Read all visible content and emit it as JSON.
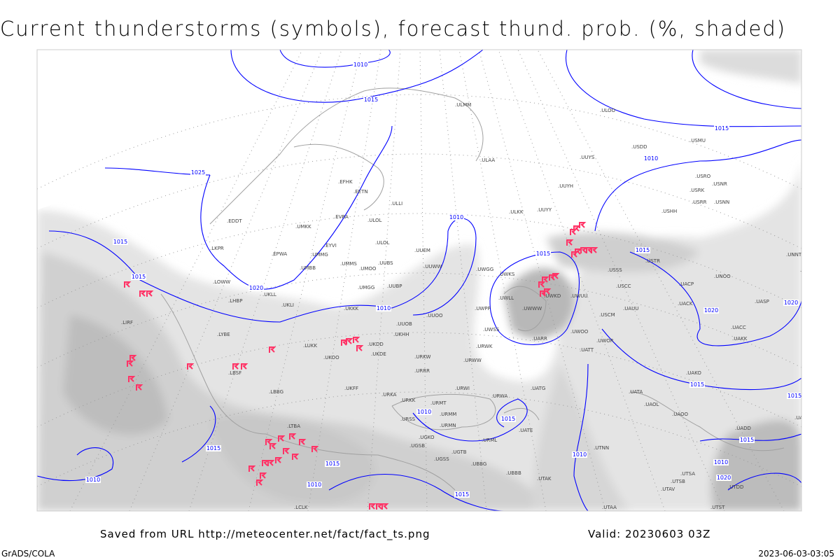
{
  "title": "Current thunderstorms (symbols), forecast thund. prob. (%, shaded)",
  "footer": {
    "source": "Saved from URL http://meteocenter.net/fact/fact_ts.png",
    "valid": "Valid: 20230603 03Z",
    "software": "GrADS/COLA",
    "timestamp": "2023-06-03-03:05"
  },
  "colors": {
    "isobar": "#0000ff",
    "storm_symbol": "#ff3366",
    "coastline": "#a0a0a0",
    "shading_light": "#e4e4e4",
    "shading_mid": "#cfcfcf",
    "shading_dark": "#b4b4b4"
  },
  "isobar_labels": [
    "1010",
    "1015",
    "1025",
    "1015",
    "1020",
    "1015",
    "1010",
    "1010",
    "1015",
    "1010",
    "1015",
    "1020",
    "1020",
    "1015",
    "1015",
    "1010",
    "1015",
    "1010",
    "1010",
    "1015",
    "1015",
    "1010",
    "1015",
    "1020",
    "1015",
    "1015",
    "1010"
  ],
  "stations": [
    "ULMM",
    "ULOO",
    "USDD",
    "USMU",
    "UUYS",
    "ULAA",
    "UUYH",
    "USRO",
    "USRK",
    "USNR",
    "USRR",
    "USNN",
    "USHH",
    "ULKK",
    "UUYY",
    "EFHK",
    "EETN",
    "ULLI",
    "EVRA",
    "ULOL",
    "EDDT",
    "UMKK",
    "ULOL",
    "EYVI",
    "UMMG",
    "EPWA",
    "LKPR",
    "UMMS",
    "UMOO",
    "UUBS",
    "UUEM",
    "UUWW",
    "UWGG",
    "UWKS",
    "USSS",
    "USTR",
    "UNBB",
    "UNNT",
    "UNOO",
    "UACP",
    "USCC",
    "UWKD",
    "UWUU",
    "LOWW",
    "UKLL",
    "UMGG",
    "UUBP",
    "UKLI",
    "LHBP",
    "UKKK",
    "UWWW",
    "UWLL",
    "UWPP",
    "USCM",
    "UAUU",
    "UACK",
    "UASP",
    "UUOO",
    "UUOB",
    "LIRF",
    "UKHH",
    "UAKK",
    "UACC",
    "UWSS",
    "URWK",
    "UARR",
    "UWOO",
    "UWOR",
    "UATT",
    "LYBE",
    "LUKK",
    "UKDD",
    "UKDE",
    "UKOO",
    "URKW",
    "URWW",
    "LBSF",
    "URRR",
    "UAKO",
    "UATG",
    "URWI",
    "UKFF",
    "URKA",
    "URKK",
    "LBBG",
    "URMT",
    "URWA",
    "UATA",
    "UAOL",
    "URMM",
    "URSS",
    "UAOO",
    "UAFM",
    "UADD",
    "LTBA",
    "URMN",
    "UATE",
    "UGKO",
    "URML",
    "UGSB",
    "UTNN",
    "UGTB",
    "UGSS",
    "UBBB",
    "UBBG",
    "UTAK",
    "UTSA",
    "UTSB",
    "UTAV",
    "UTST",
    "LCLK",
    "UTAA",
    "UTDD",
    "UMBB"
  ]
}
